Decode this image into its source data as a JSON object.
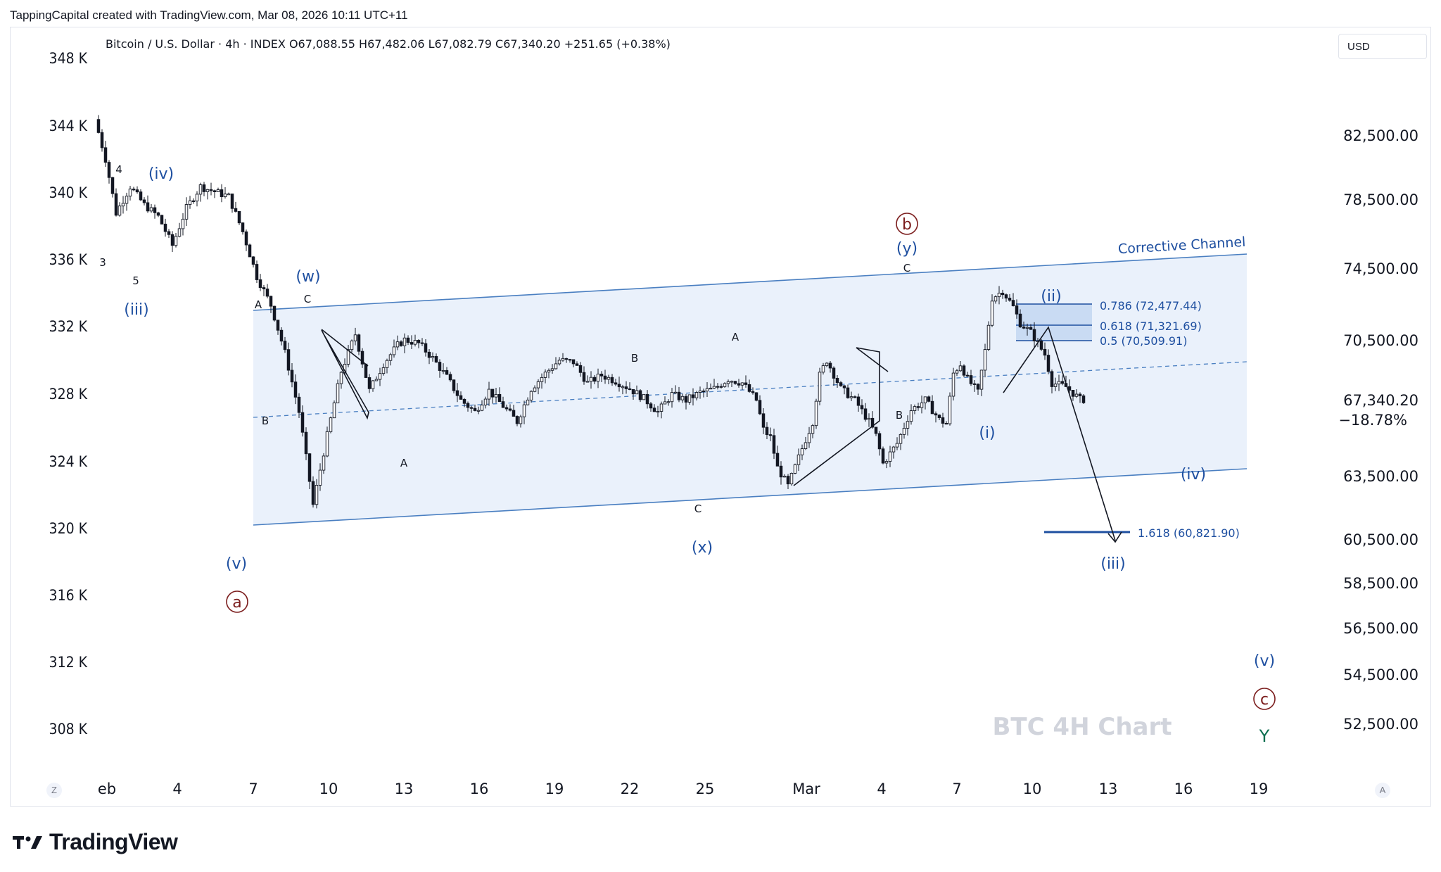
{
  "header": {
    "attribution": "TappingCapital created with TradingView.com, Mar 08, 2026 10:11 UTC+11"
  },
  "legend": {
    "symbol": "Bitcoin / U.S. Dollar · 4h · INDEX",
    "open": "O67,088.55",
    "high": "H67,482.06",
    "low": "L67,082.79",
    "close": "C67,340.20",
    "change": "+251.65 (+0.38%)"
  },
  "currency_button": "USD",
  "watermark": "BTC 4H Chart",
  "footer": {
    "brand": "TradingView"
  },
  "corner_left": "Z",
  "corner_right": "A",
  "colors": {
    "blue": "#2962ff",
    "wave_blue": "#1e4fa0",
    "channel_fill": "#eaf1fb",
    "channel_line": "#4a7fc1",
    "maroon": "#7b1c1c",
    "green": "#0b6e4f",
    "watermark": "#d1d4dc"
  },
  "chart_data": {
    "type": "candlestick",
    "title": "BTC 4H Chart",
    "left_axis": {
      "labels": [
        "348 K",
        "344 K",
        "340 K",
        "336 K",
        "332 K",
        "328 K",
        "324 K",
        "320 K",
        "316 K",
        "312 K",
        "308 K"
      ]
    },
    "right_axis": {
      "labels": [
        "82,500.00",
        "78,500.00",
        "74,500.00",
        "70,500.00",
        "63,500.00",
        "60,500.00",
        "58,500.00",
        "56,500.00",
        "54,500.00",
        "52,500.00"
      ],
      "last_price": "67,340.20",
      "last_pct": "−18.78%"
    },
    "x_axis": {
      "labels": [
        "eb",
        "4",
        "7",
        "10",
        "13",
        "16",
        "19",
        "22",
        "25",
        "Mar",
        "4",
        "7",
        "10",
        "13",
        "16",
        "19"
      ]
    },
    "price_path": [
      [
        0,
        83500
      ],
      [
        3,
        81000
      ],
      [
        6,
        77700
      ],
      [
        10,
        79300
      ],
      [
        14,
        78200
      ],
      [
        18,
        77500
      ],
      [
        22,
        75800
      ],
      [
        26,
        78000
      ],
      [
        30,
        79300
      ],
      [
        34,
        79000
      ],
      [
        38,
        78700
      ],
      [
        42,
        76600
      ],
      [
        46,
        74000
      ],
      [
        50,
        72400
      ],
      [
        54,
        69800
      ],
      [
        58,
        66700
      ],
      [
        62,
        62100
      ],
      [
        66,
        65500
      ],
      [
        70,
        68800
      ],
      [
        74,
        70800
      ],
      [
        78,
        67800
      ],
      [
        82,
        69200
      ],
      [
        86,
        70200
      ],
      [
        88,
        70500
      ],
      [
        92,
        70300
      ],
      [
        96,
        69500
      ],
      [
        100,
        68500
      ],
      [
        104,
        67300
      ],
      [
        108,
        66700
      ],
      [
        112,
        67800
      ],
      [
        116,
        67000
      ],
      [
        120,
        66200
      ],
      [
        124,
        67900
      ],
      [
        128,
        68700
      ],
      [
        132,
        69400
      ],
      [
        136,
        69300
      ],
      [
        140,
        68200
      ],
      [
        144,
        68600
      ],
      [
        148,
        68300
      ],
      [
        152,
        67900
      ],
      [
        156,
        67400
      ],
      [
        160,
        66700
      ],
      [
        164,
        67600
      ],
      [
        168,
        67300
      ],
      [
        172,
        67700
      ],
      [
        176,
        67900
      ],
      [
        180,
        68400
      ],
      [
        184,
        68200
      ],
      [
        188,
        67300
      ],
      [
        190,
        65800
      ],
      [
        192,
        65400
      ],
      [
        194,
        63900
      ],
      [
        197,
        63000
      ],
      [
        200,
        64400
      ],
      [
        204,
        66200
      ],
      [
        206,
        68600
      ],
      [
        208,
        69400
      ],
      [
        212,
        67900
      ],
      [
        216,
        67300
      ],
      [
        220,
        66200
      ],
      [
        222,
        65500
      ],
      [
        224,
        64100
      ],
      [
        228,
        65100
      ],
      [
        232,
        66800
      ],
      [
        236,
        67300
      ],
      [
        240,
        66300
      ],
      [
        242,
        66100
      ],
      [
        244,
        68700
      ],
      [
        246,
        69200
      ],
      [
        248,
        68400
      ],
      [
        251,
        67700
      ],
      [
        253,
        69900
      ],
      [
        255,
        72800
      ],
      [
        258,
        73200
      ],
      [
        261,
        72300
      ],
      [
        263,
        71400
      ],
      [
        266,
        70900
      ],
      [
        270,
        69700
      ],
      [
        272,
        68200
      ],
      [
        276,
        68000
      ],
      [
        280,
        67340
      ]
    ]
  },
  "annotations": {
    "channel_label": "Corrective Channel",
    "fib_levels": [
      {
        "label": "0.786 (72,477.44)",
        "value": 72477.44
      },
      {
        "label": "0.618 (71,321.69)",
        "value": 71321.69
      },
      {
        "label": "0.5 (70,509.91)",
        "value": 70509.91
      }
    ],
    "fib_ext": {
      "label": "1.618 (60,821.90)",
      "value": 60821.9
    },
    "waves": {
      "w4": "4",
      "w3": "3",
      "w5": "5",
      "iv_l": "(iv)",
      "iii_l": "(iii)",
      "v_l": "(v)",
      "a_c": "a",
      "w_l": "(w)",
      "x_l": "(x)",
      "y_l": "(y)",
      "b_c": "b",
      "A1": "A",
      "C1": "C",
      "B1": "B",
      "A2": "A",
      "B2": "B",
      "A3": "A",
      "C2": "C",
      "C3": "C",
      "B3": "B",
      "i_r": "(i)",
      "ii_r": "(ii)",
      "iii_r": "(iii)",
      "iv_r": "(iv)",
      "v_r": "(v)",
      "c_c": "c",
      "Y": "Y"
    }
  }
}
